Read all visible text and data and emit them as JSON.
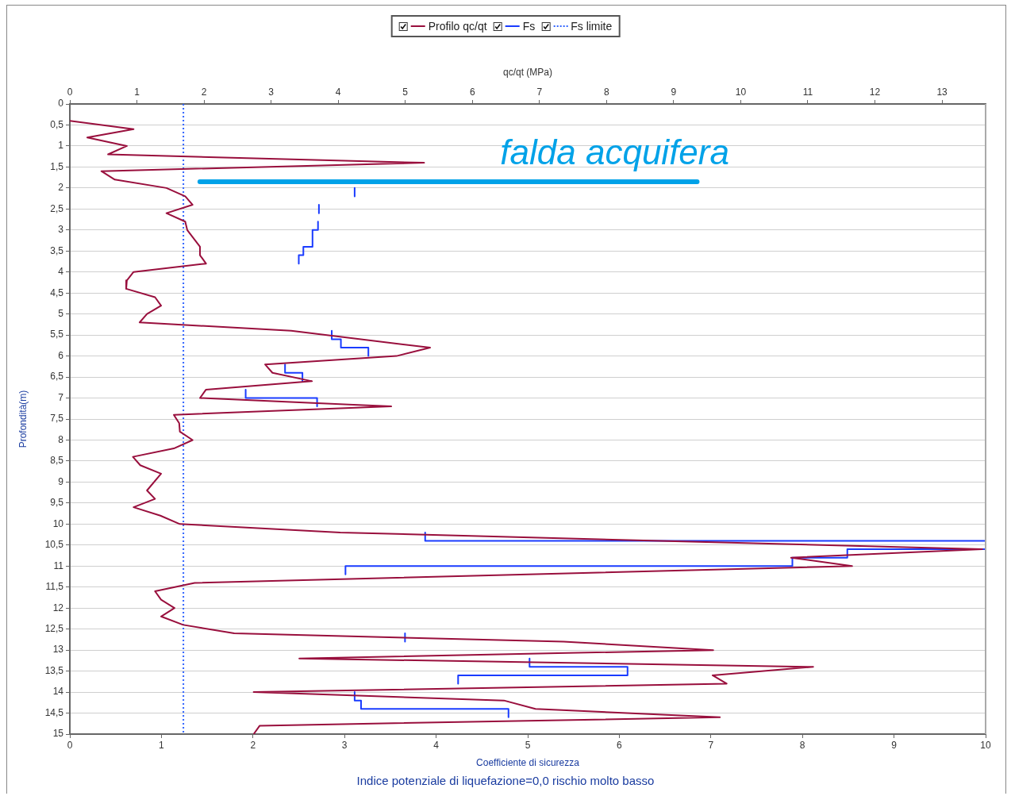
{
  "chart_data": {
    "type": "line",
    "xlabel": "Coefficiente di sicurezza",
    "x2label": "qc/qt (MPa)",
    "ylabel": "Profondità(m)",
    "xlim": [
      0,
      10
    ],
    "xticks": [
      0,
      1,
      2,
      3,
      4,
      5,
      6,
      7,
      8,
      9,
      10
    ],
    "x2lim": [
      0,
      13.65
    ],
    "x2ticks": [
      0,
      1,
      2,
      3,
      4,
      5,
      6,
      7,
      8,
      9,
      10,
      11,
      12,
      13
    ],
    "ylim": [
      15,
      0
    ],
    "yticks": [
      0,
      {
        "value": 0.5,
        "label": "0,5"
      },
      1,
      {
        "value": 1.5,
        "label": "1,5"
      },
      2,
      {
        "value": 2.5,
        "label": "2,5"
      },
      3,
      {
        "value": 3.5,
        "label": "3,5"
      },
      4,
      {
        "value": 4.5,
        "label": "4,5"
      },
      5,
      {
        "value": 5.5,
        "label": "5,5"
      },
      6,
      {
        "value": 6.5,
        "label": "6,5"
      },
      7,
      {
        "value": 7.5,
        "label": "7,5"
      },
      8,
      {
        "value": 8.5,
        "label": "8,5"
      },
      9,
      {
        "value": 9.5,
        "label": "9,5"
      },
      10,
      {
        "value": 10.5,
        "label": "10,5"
      },
      11,
      {
        "value": 11.5,
        "label": "11,5"
      },
      12,
      {
        "value": 12.5,
        "label": "12,5"
      },
      13,
      {
        "value": 13.5,
        "label": "13,5"
      },
      14,
      {
        "value": 14.5,
        "label": "14,5"
      },
      15
    ],
    "grid": "y",
    "legend": "top",
    "marker": "none",
    "series": [
      {
        "name": "Profilo qc/qt",
        "color": "#990f3d",
        "axis": "x2",
        "x": [
          0,
          0.95,
          0.26,
          0.85,
          0.57,
          5.28,
          0.47,
          0.67,
          1.44,
          1.72,
          1.83,
          1.44,
          1.72,
          1.75,
          1.94,
          1.94,
          2.03,
          0.95,
          0.85,
          0.84,
          1.27,
          1.36,
          1.15,
          1.04,
          3.3,
          5.37,
          4.87,
          2.91,
          3.02,
          3.61,
          2.03,
          1.94,
          4.79,
          1.55,
          1.63,
          1.64,
          1.83,
          1.55,
          0.94,
          1.05,
          1.36,
          1.15,
          1.27,
          0.95,
          1.35,
          1.64,
          4.03,
          13.6,
          10.75,
          11.66,
          1.86,
          1.27,
          1.36,
          1.56,
          1.36,
          1.69,
          2.45,
          7.36,
          9.59,
          3.42,
          11.08,
          9.58,
          9.79,
          2.74,
          6.47,
          6.94,
          9.69,
          2.83,
          2.74
        ],
        "values": [
          0.4,
          0.6,
          0.8,
          1.0,
          1.2,
          1.4,
          1.6,
          1.8,
          2.0,
          2.2,
          2.4,
          2.6,
          2.8,
          3.0,
          3.4,
          3.6,
          3.8,
          4.0,
          4.2,
          4.4,
          4.6,
          4.8,
          5.0,
          5.2,
          5.4,
          5.8,
          6.0,
          6.2,
          6.4,
          6.6,
          6.8,
          7.0,
          7.2,
          7.4,
          7.6,
          7.8,
          8.0,
          8.2,
          8.4,
          8.6,
          8.8,
          9.2,
          9.4,
          9.6,
          9.8,
          10.0,
          10.2,
          10.6,
          10.8,
          11.0,
          11.4,
          11.6,
          11.8,
          12.0,
          12.2,
          12.4,
          12.6,
          12.8,
          13.0,
          13.2,
          13.4,
          13.6,
          13.8,
          14.0,
          14.2,
          14.4,
          14.6,
          14.8,
          15.0
        ]
      },
      {
        "name": "Fs",
        "color": "#1a3cff",
        "x": [
          3.11,
          3.11,
          null,
          2.72,
          2.72,
          null,
          2.71,
          2.71,
          2.65,
          2.65,
          2.55,
          2.55,
          2.5,
          2.5,
          null,
          2.86,
          2.86,
          2.96,
          2.96,
          3.26,
          3.26,
          null,
          2.35,
          2.35,
          2.54,
          2.54,
          null,
          1.92,
          1.92,
          2.7,
          2.7,
          null,
          3.88,
          3.88,
          10,
          10,
          8.49,
          8.49,
          7.89,
          7.89,
          3.01,
          3.01,
          null,
          3.66,
          3.66,
          null,
          5.02,
          5.02,
          6.09,
          6.09,
          4.24,
          4.24,
          null,
          3.11,
          3.11,
          3.18,
          3.18,
          4.79,
          4.79
        ],
        "values": [
          2.0,
          2.2,
          null,
          2.4,
          2.6,
          null,
          2.8,
          3.0,
          3.0,
          3.4,
          3.4,
          3.6,
          3.6,
          3.8,
          null,
          5.4,
          5.6,
          5.6,
          5.8,
          5.8,
          6.0,
          null,
          6.2,
          6.4,
          6.4,
          6.6,
          null,
          6.8,
          7.0,
          7.0,
          7.2,
          null,
          10.2,
          10.4,
          10.4,
          10.6,
          10.6,
          10.8,
          10.8,
          11.0,
          11.0,
          11.2,
          null,
          12.6,
          12.8,
          null,
          13.2,
          13.4,
          13.4,
          13.6,
          13.6,
          13.8,
          null,
          14.0,
          14.2,
          14.2,
          14.4,
          14.4,
          14.6
        ]
      },
      {
        "name": "Fs limite",
        "color": "#3366ff",
        "line_style": "dotted",
        "x": [
          1.24,
          1.24
        ],
        "values": [
          0,
          15
        ]
      },
      {
        "color": "#00a2e8",
        "x": [
          1.42,
          6.85
        ],
        "values": [
          1.85,
          1.85
        ]
      }
    ],
    "annotations": [
      {
        "text": "falda acquifera",
        "x": 5.95,
        "y": 1.85
      },
      "Indice potenziale di liquefazione=0,0 rischio molto basso"
    ]
  }
}
